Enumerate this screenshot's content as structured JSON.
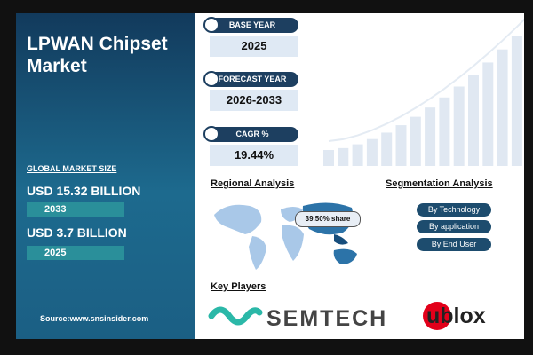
{
  "title": "LPWAN Chipset Market",
  "market_size": {
    "label": "GLOBAL MARKET SIZE",
    "items": [
      {
        "value": "USD 15.32 BILLION",
        "year": "2033"
      },
      {
        "value": "USD 3.7 BILLION",
        "year": "2025"
      }
    ]
  },
  "source": "Source:www.snsinsider.com",
  "stats": [
    {
      "label": "BASE YEAR",
      "value": "2025"
    },
    {
      "label": "FORECAST YEAR",
      "value": "2026-2033"
    },
    {
      "label": "CAGR %",
      "value": "19.44%"
    }
  ],
  "regional": {
    "title": "Regional Analysis",
    "callout": "39.50% share"
  },
  "segmentation": {
    "title": "Segmentation Analysis",
    "items": [
      "By Technology",
      "By application",
      "By End User"
    ]
  },
  "key_players": {
    "title": "Key Players",
    "items": [
      "SEMTECH",
      "ublox"
    ]
  }
}
